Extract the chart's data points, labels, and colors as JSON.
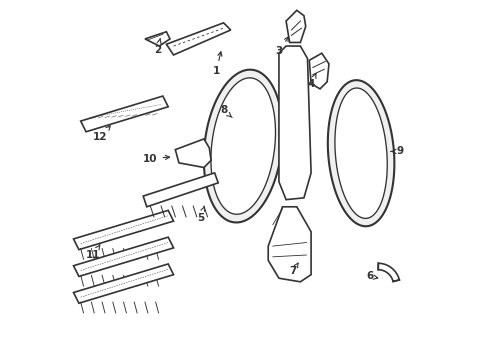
{
  "background_color": "#ffffff",
  "line_color": "#333333",
  "line_width": 1.2,
  "label_data": [
    [
      1,
      0.42,
      0.805,
      0.435,
      0.87
    ],
    [
      2,
      0.255,
      0.865,
      0.265,
      0.905
    ],
    [
      3,
      0.595,
      0.86,
      0.628,
      0.91
    ],
    [
      4,
      0.685,
      0.77,
      0.7,
      0.8
    ],
    [
      5,
      0.375,
      0.395,
      0.39,
      0.435
    ],
    [
      6,
      0.85,
      0.23,
      0.875,
      0.225
    ],
    [
      7,
      0.635,
      0.245,
      0.65,
      0.27
    ],
    [
      8,
      0.44,
      0.695,
      0.47,
      0.67
    ],
    [
      9,
      0.935,
      0.58,
      0.9,
      0.58
    ],
    [
      10,
      0.235,
      0.56,
      0.3,
      0.565
    ],
    [
      11,
      0.075,
      0.29,
      0.095,
      0.32
    ],
    [
      12,
      0.095,
      0.62,
      0.13,
      0.66
    ]
  ]
}
